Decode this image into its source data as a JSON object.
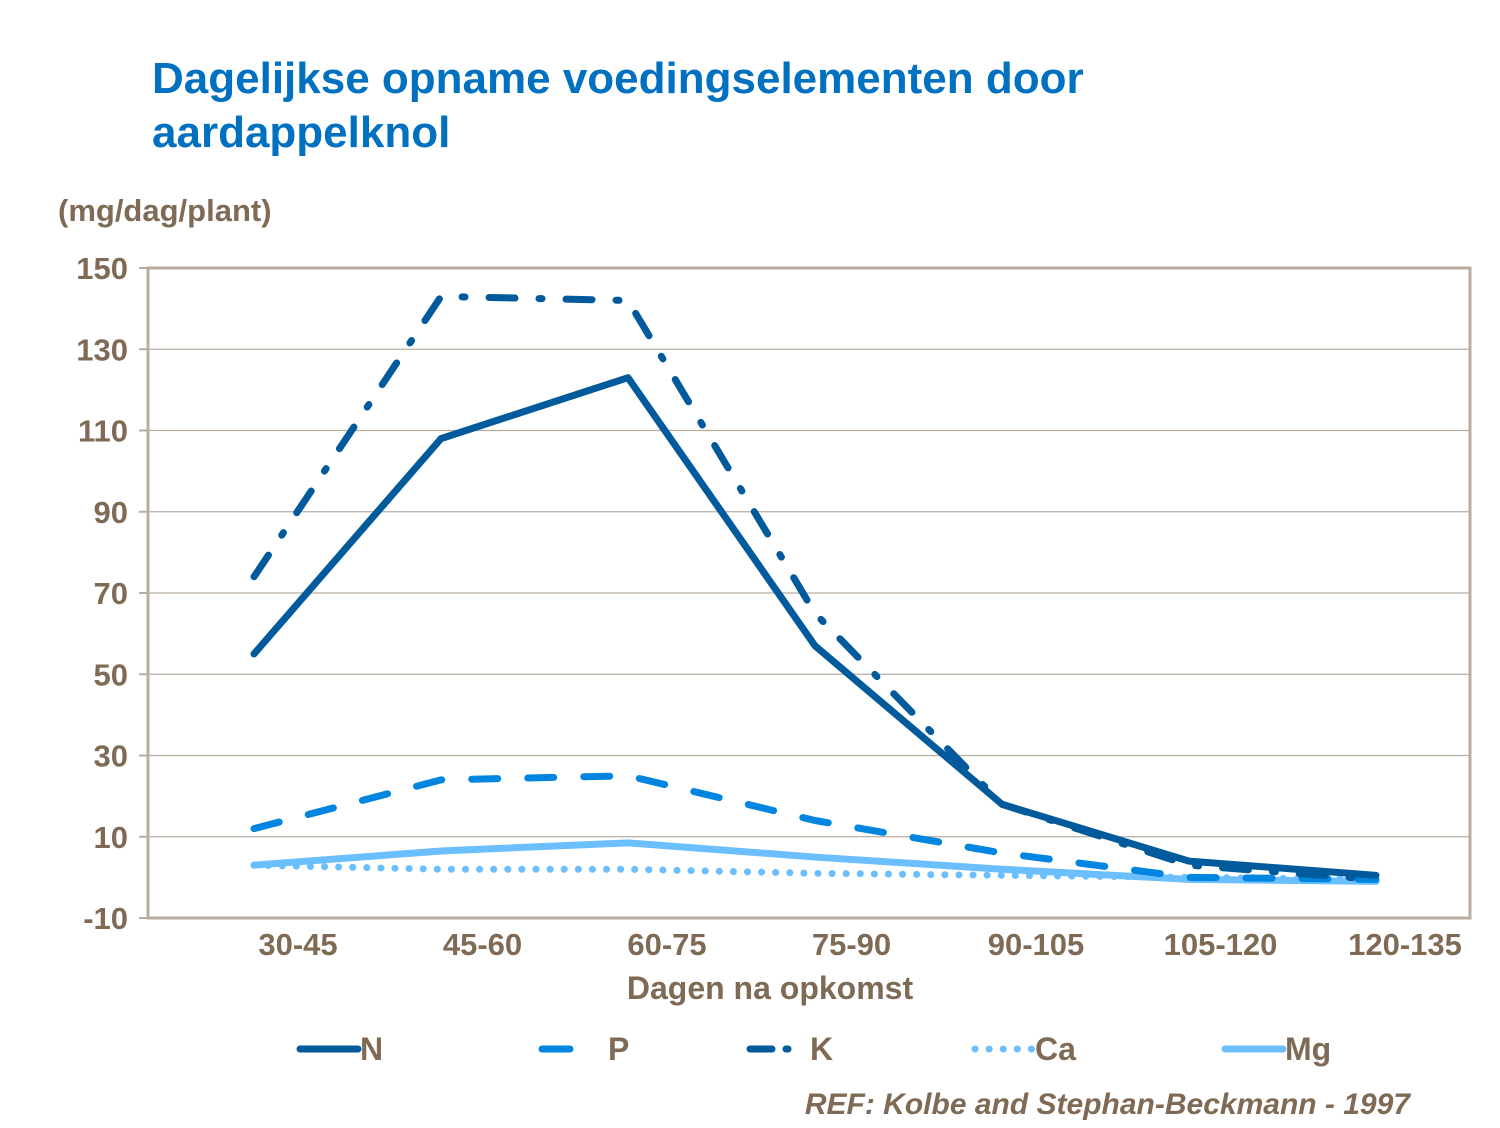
{
  "chart_data": {
    "type": "line",
    "title": "Dagelijkse opname voedingselementen door aardappelknol",
    "ylabel": "(mg/dag/plant)",
    "xlabel": "Dagen na opkomst",
    "categories": [
      "30-45",
      "45-60",
      "60-75",
      "75-90",
      "90-105",
      "105-120",
      "120-135"
    ],
    "ylim": [
      -10,
      150
    ],
    "yticks": [
      -10,
      10,
      30,
      50,
      70,
      90,
      110,
      130,
      150
    ],
    "grid": true,
    "legend_position": "bottom",
    "series": [
      {
        "name": "N",
        "values": [
          55,
          108,
          123,
          57,
          18,
          4,
          0.5
        ],
        "color": "#005a9c",
        "style": "solid"
      },
      {
        "name": "P",
        "values": [
          12,
          24,
          25,
          14,
          6,
          0,
          -0.5
        ],
        "color": "#0085e0",
        "style": "dash"
      },
      {
        "name": "K",
        "values": [
          74,
          143,
          142,
          65,
          18,
          3,
          -0.5
        ],
        "color": "#005a9c",
        "style": "dash-dot"
      },
      {
        "name": "Ca",
        "values": [
          3,
          2,
          2,
          1,
          0.5,
          0,
          -0.5
        ],
        "color": "#6bbfff",
        "style": "dot"
      },
      {
        "name": "Mg",
        "values": [
          3,
          6.5,
          8.5,
          5,
          2,
          -0.5,
          -1
        ],
        "color": "#6bbfff",
        "style": "solid"
      }
    ],
    "source": "REF: Kolbe and Stephan-Beckmann  - 1997"
  }
}
